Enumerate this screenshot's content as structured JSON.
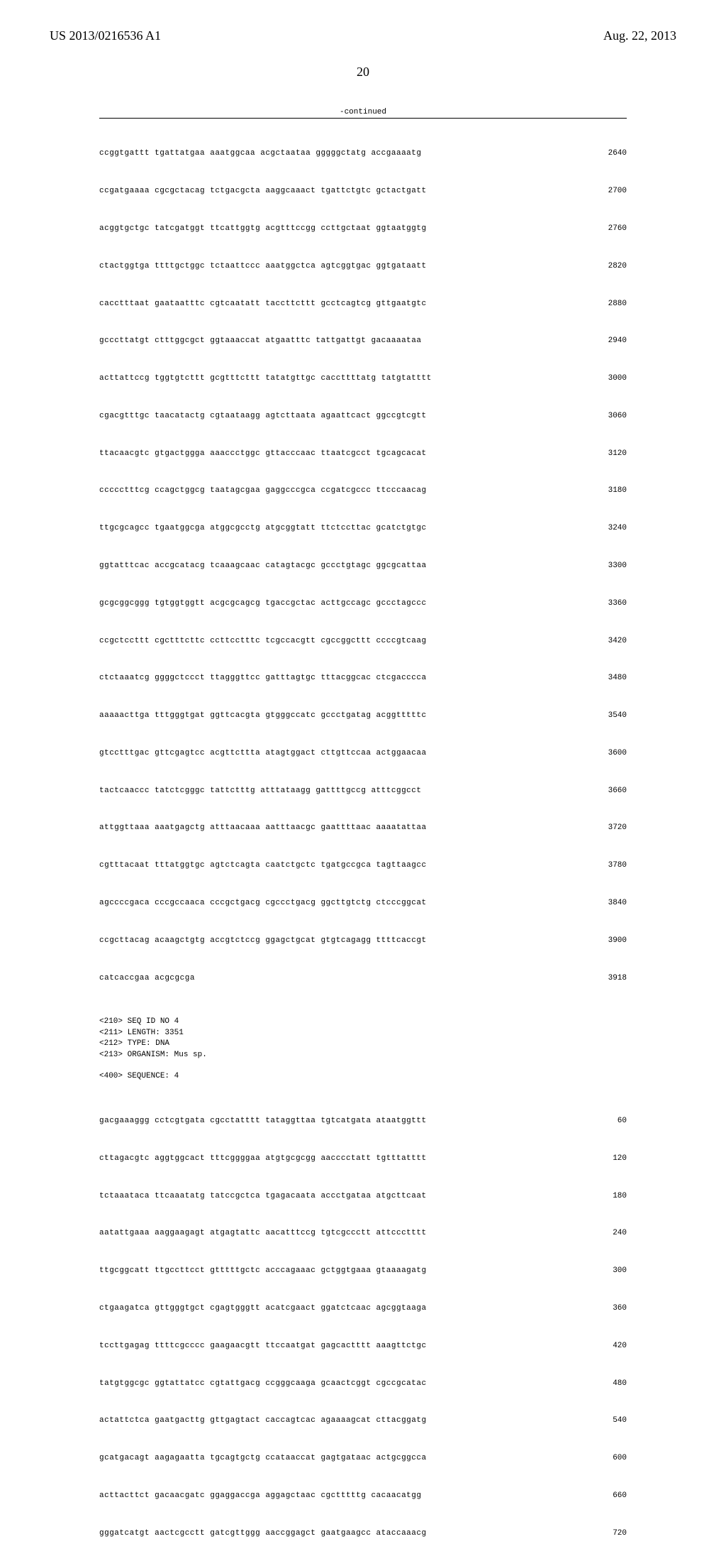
{
  "header": {
    "pub_number": "US 2013/0216536 A1",
    "pub_date": "Aug. 22, 2013",
    "page_number": "20"
  },
  "continued": "-continued",
  "seq1": [
    {
      "t": "ccggtgattt tgattatgaa aaatggcaa acgctaataa gggggctatg accgaaaatg",
      "n": "2640"
    },
    {
      "t": "ccgatgaaaa cgcgctacag tctgacgcta aaggcaaact tgattctgtc gctactgatt",
      "n": "2700"
    },
    {
      "t": "acggtgctgc tatcgatggt ttcattggtg acgtttccgg ccttgctaat ggtaatggtg",
      "n": "2760"
    },
    {
      "t": "ctactggtga ttttgctggc tctaattccc aaatggctca agtcggtgac ggtgataatt",
      "n": "2820"
    },
    {
      "t": "cacctttaat gaataatttc cgtcaatatt taccttcttt gcctcagtcg gttgaatgtc",
      "n": "2880"
    },
    {
      "t": "gcccttatgt ctttggcgct ggtaaaccat atgaatttc tattgattgt gacaaaataa",
      "n": "2940"
    },
    {
      "t": "acttattccg tggtgtcttt gcgtttcttt tatatgttgc caccttttatg tatgtatttt",
      "n": "3000"
    },
    {
      "t": "cgacgtttgc taacatactg cgtaataagg agtcttaata agaattcact ggccgtcgtt",
      "n": "3060"
    },
    {
      "t": "ttacaacgtc gtgactggga aaaccctggc gttacccaac ttaatcgcct tgcagcacat",
      "n": "3120"
    },
    {
      "t": "ccccctttcg ccagctggcg taatagcgaa gaggcccgca ccgatcgccc ttcccaacag",
      "n": "3180"
    },
    {
      "t": "ttgcgcagcc tgaatggcga atggcgcctg atgcggtatt ttctccttac gcatctgtgc",
      "n": "3240"
    },
    {
      "t": "ggtatttcac accgcatacg tcaaagcaac catagtacgc gccctgtagc ggcgcattaa",
      "n": "3300"
    },
    {
      "t": "gcgcggcggg tgtggtggtt acgcgcagcg tgaccgctac acttgccagc gccctagccc",
      "n": "3360"
    },
    {
      "t": "ccgctccttt cgctttcttc ccttcctttc tcgccacgtt cgccggcttt ccccgtcaag",
      "n": "3420"
    },
    {
      "t": "ctctaaatcg ggggctccct ttagggttcc gatttagtgc tttacggcac ctcgacccca",
      "n": "3480"
    },
    {
      "t": "aaaaacttga tttgggtgat ggttcacgta gtgggccatc gccctgatag acggtttttc",
      "n": "3540"
    },
    {
      "t": "gtcctttgac gttcgagtcc acgttcttta atagtggact cttgttccaa actggaacaa",
      "n": "3600"
    },
    {
      "t": "tactcaaccc tatctcgggc tattctttg atttataagg gattttgccg atttcggcct",
      "n": "3660"
    },
    {
      "t": "attggttaaa aaatgagctg atttaacaaa aatttaacgc gaattttaac aaaatattaa",
      "n": "3720"
    },
    {
      "t": "cgtttacaat tttatggtgc agtctcagta caatctgctc tgatgccgca tagttaagcc",
      "n": "3780"
    },
    {
      "t": "agccccgaca cccgccaaca cccgctgacg cgccctgacg ggcttgtctg ctcccggcat",
      "n": "3840"
    },
    {
      "t": "ccgcttacag acaagctgtg accgtctccg ggagctgcat gtgtcagagg ttttcaccgt",
      "n": "3900"
    },
    {
      "t": "catcaccgaa acgcgcga",
      "n": "3918"
    }
  ],
  "meta": {
    "l1": "<210> SEQ ID NO 4",
    "l2": "<211> LENGTH: 3351",
    "l3": "<212> TYPE: DNA",
    "l4": "<213> ORGANISM: Mus sp.",
    "l5": "<400> SEQUENCE: 4"
  },
  "seq2": [
    {
      "t": "gacgaaaggg cctcgtgata cgcctatttt tataggttaa tgtcatgata ataatggttt",
      "n": "60"
    },
    {
      "t": "cttagacgtc aggtggcact tttcggggaa atgtgcgcgg aacccctatt tgtttatttt",
      "n": "120"
    },
    {
      "t": "tctaaataca ttcaaatatg tatccgctca tgagacaata accctgataa atgcttcaat",
      "n": "180"
    },
    {
      "t": "aatattgaaa aaggaagagt atgagtattc aacatttccg tgtcgccctt attccctttt",
      "n": "240"
    },
    {
      "t": "ttgcggcatt ttgccttcct gtttttgctc acccagaaac gctggtgaaa gtaaaagatg",
      "n": "300"
    },
    {
      "t": "ctgaagatca gttgggtgct cgagtgggtt acatcgaact ggatctcaac agcggtaaga",
      "n": "360"
    },
    {
      "t": "tccttgagag ttttcgcccc gaagaacgtt ttccaatgat gagcactttt aaagttctgc",
      "n": "420"
    },
    {
      "t": "tatgtggcgc ggtattatcc cgtattgacg ccgggcaaga gcaactcggt cgccgcatac",
      "n": "480"
    },
    {
      "t": "actattctca gaatgacttg gttgagtact caccagtcac agaaaagcat cttacggatg",
      "n": "540"
    },
    {
      "t": "gcatgacagt aagagaatta tgcagtgctg ccataaccat gagtgataac actgcggcca",
      "n": "600"
    },
    {
      "t": "acttacttct gacaacgatc ggaggaccga aggagctaac cgctttttg cacaacatgg",
      "n": "660"
    },
    {
      "t": "gggatcatgt aactcgcctt gatcgttggg aaccggagct gaatgaagcc ataccaaacg",
      "n": "720"
    }
  ]
}
